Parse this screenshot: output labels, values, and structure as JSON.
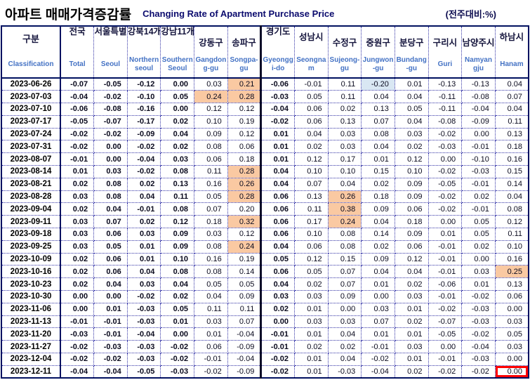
{
  "title": {
    "korean": "아파트 매매가격증감률",
    "english": "Changing Rate of Apartment Purchase Price",
    "unit_note": "(전주대비:%)"
  },
  "colors": {
    "highlight_orange": "#FAC9A2",
    "highlight_blue": "#D9E7F3",
    "red_box": "#FF0000",
    "border_navy": "#001060",
    "header_korean_text": "#14143C",
    "header_english_text": "#4472C4"
  },
  "table": {
    "corner": {
      "korean": "구분",
      "english": "Classification"
    },
    "columns": [
      {
        "id": "total",
        "korean": "전국",
        "english": "Total",
        "tier": 1,
        "bold": true,
        "thick_left": false
      },
      {
        "id": "seoul",
        "korean": "서울특별",
        "english": "Seoul",
        "tier": 1,
        "bold": true,
        "thick_left": false
      },
      {
        "id": "northern_seoul",
        "korean": "강북14개",
        "english": "Northern seoul",
        "tier": 1,
        "bold": true,
        "thick_left": false
      },
      {
        "id": "southern_seoul",
        "korean": "강남11개",
        "english": "Southern Seoul",
        "tier": 1,
        "bold": true,
        "thick_left": false
      },
      {
        "id": "gangdong",
        "korean": "강동구",
        "english": "Gangdong-gu",
        "tier": 3,
        "bold": false,
        "thick_left": false
      },
      {
        "id": "songpa",
        "korean": "송파구",
        "english": "Songpa-gu",
        "tier": 3,
        "bold": false,
        "thick_left": false
      },
      {
        "id": "gyeonggi",
        "korean": "경기도",
        "english": "Gyeonggi-do",
        "tier": 1,
        "bold": true,
        "thick_left": true
      },
      {
        "id": "seongnam",
        "korean": "성남시",
        "english": "Seongnam",
        "tier": 2,
        "bold": false,
        "thick_left": false
      },
      {
        "id": "sujeong",
        "korean": "수정구",
        "english": "Sujeong-gu",
        "tier": 3,
        "bold": false,
        "thick_left": false
      },
      {
        "id": "jungwon",
        "korean": "중원구",
        "english": "Jungwon-gu",
        "tier": 3,
        "bold": false,
        "thick_left": false
      },
      {
        "id": "bundang",
        "korean": "분당구",
        "english": "Bundang-gu",
        "tier": 3,
        "bold": false,
        "thick_left": false
      },
      {
        "id": "guri",
        "korean": "구리시",
        "english": "Guri",
        "tier": 3,
        "bold": false,
        "thick_left": false
      },
      {
        "id": "namyangju",
        "korean": "남양주시",
        "english": "Namyangju",
        "tier": 3,
        "bold": false,
        "thick_left": false
      },
      {
        "id": "hanam",
        "korean": "하남시",
        "english": "Hanam",
        "tier": 2,
        "bold": false,
        "thick_left": false
      }
    ],
    "rows": [
      {
        "date": "2023-06-26",
        "values": [
          "-0.07",
          "-0.05",
          "-0.12",
          "0.00",
          "0.03",
          "0.21",
          "-0.06",
          "-0.01",
          "0.11",
          "-0.20",
          "0.01",
          "-0.13",
          "-0.13",
          "0.04"
        ]
      },
      {
        "date": "2023-07-03",
        "values": [
          "-0.04",
          "-0.02",
          "-0.10",
          "0.05",
          "0.24",
          "0.28",
          "-0.03",
          "0.05",
          "0.11",
          "0.04",
          "0.04",
          "-0.11",
          "-0.08",
          "0.07"
        ]
      },
      {
        "date": "2023-07-10",
        "values": [
          "-0.06",
          "-0.08",
          "-0.16",
          "0.00",
          "0.12",
          "0.12",
          "-0.04",
          "0.06",
          "0.02",
          "0.13",
          "0.05",
          "-0.11",
          "-0.04",
          "0.04"
        ]
      },
      {
        "date": "2023-07-17",
        "values": [
          "-0.05",
          "-0.07",
          "-0.17",
          "0.02",
          "0.10",
          "0.19",
          "-0.02",
          "0.06",
          "0.13",
          "0.07",
          "0.04",
          "-0.08",
          "-0.09",
          "0.11"
        ]
      },
      {
        "date": "2023-07-24",
        "values": [
          "-0.02",
          "-0.02",
          "-0.09",
          "0.04",
          "0.09",
          "0.12",
          "0.01",
          "0.04",
          "0.03",
          "0.08",
          "0.03",
          "-0.02",
          "0.00",
          "0.13"
        ]
      },
      {
        "date": "2023-07-31",
        "values": [
          "-0.02",
          "0.00",
          "-0.02",
          "0.02",
          "0.08",
          "0.06",
          "0.01",
          "0.02",
          "0.03",
          "0.04",
          "0.02",
          "-0.03",
          "-0.01",
          "0.18"
        ]
      },
      {
        "date": "2023-08-07",
        "values": [
          "-0.01",
          "0.00",
          "-0.04",
          "0.03",
          "0.06",
          "0.18",
          "0.01",
          "0.12",
          "0.17",
          "0.01",
          "0.12",
          "0.00",
          "-0.10",
          "0.16"
        ]
      },
      {
        "date": "2023-08-14",
        "values": [
          "0.01",
          "0.03",
          "-0.02",
          "0.08",
          "0.11",
          "0.28",
          "0.04",
          "0.10",
          "0.10",
          "0.15",
          "0.10",
          "-0.02",
          "-0.03",
          "0.15"
        ]
      },
      {
        "date": "2023-08-21",
        "values": [
          "0.02",
          "0.08",
          "0.02",
          "0.13",
          "0.16",
          "0.26",
          "0.04",
          "0.07",
          "0.04",
          "0.02",
          "0.09",
          "-0.05",
          "-0.01",
          "0.14"
        ]
      },
      {
        "date": "2023-08-28",
        "values": [
          "0.03",
          "0.08",
          "0.04",
          "0.11",
          "0.05",
          "0.28",
          "0.06",
          "0.13",
          "0.26",
          "0.18",
          "0.09",
          "-0.02",
          "0.02",
          "0.04"
        ]
      },
      {
        "date": "2023-09-04",
        "values": [
          "0.02",
          "0.04",
          "-0.01",
          "0.08",
          "0.07",
          "0.20",
          "0.06",
          "0.11",
          "0.38",
          "0.09",
          "0.06",
          "-0.02",
          "-0.01",
          "0.08"
        ]
      },
      {
        "date": "2023-09-11",
        "values": [
          "0.03",
          "0.07",
          "0.02",
          "0.12",
          "0.18",
          "0.32",
          "0.06",
          "0.17",
          "0.24",
          "0.04",
          "0.18",
          "0.00",
          "0.05",
          "0.12"
        ]
      },
      {
        "date": "2023-09-18",
        "values": [
          "0.03",
          "0.06",
          "0.03",
          "0.09",
          "0.03",
          "0.12",
          "0.06",
          "0.10",
          "0.08",
          "0.14",
          "0.09",
          "0.01",
          "0.05",
          "0.11"
        ]
      },
      {
        "date": "2023-09-25",
        "values": [
          "0.03",
          "0.05",
          "0.01",
          "0.09",
          "0.08",
          "0.24",
          "0.04",
          "0.06",
          "0.08",
          "0.02",
          "0.06",
          "-0.01",
          "0.02",
          "0.10"
        ]
      },
      {
        "date": "2023-10-09",
        "values": [
          "0.02",
          "0.06",
          "0.01",
          "0.10",
          "0.16",
          "0.19",
          "0.05",
          "0.12",
          "0.15",
          "0.09",
          "0.12",
          "-0.01",
          "0.00",
          "0.16"
        ]
      },
      {
        "date": "2023-10-16",
        "values": [
          "0.02",
          "0.06",
          "0.04",
          "0.08",
          "0.08",
          "0.14",
          "0.06",
          "0.05",
          "0.07",
          "0.04",
          "0.04",
          "-0.01",
          "0.03",
          "0.25"
        ]
      },
      {
        "date": "2023-10-23",
        "values": [
          "0.02",
          "0.04",
          "0.03",
          "0.04",
          "0.05",
          "0.05",
          "0.04",
          "0.02",
          "0.07",
          "0.01",
          "0.02",
          "-0.06",
          "0.01",
          "0.13"
        ]
      },
      {
        "date": "2023-10-30",
        "values": [
          "0.00",
          "0.00",
          "-0.02",
          "0.02",
          "0.04",
          "0.09",
          "0.03",
          "0.03",
          "0.09",
          "0.00",
          "0.03",
          "-0.01",
          "-0.02",
          "0.06"
        ]
      },
      {
        "date": "2023-11-06",
        "values": [
          "0.00",
          "0.01",
          "-0.03",
          "0.05",
          "0.11",
          "0.11",
          "0.02",
          "0.01",
          "0.00",
          "0.03",
          "0.01",
          "-0.02",
          "-0.03",
          "0.00"
        ]
      },
      {
        "date": "2023-11-13",
        "values": [
          "-0.01",
          "-0.01",
          "-0.03",
          "0.01",
          "0.03",
          "0.07",
          "0.00",
          "0.03",
          "0.03",
          "0.07",
          "0.02",
          "-0.07",
          "-0.03",
          "0.03"
        ]
      },
      {
        "date": "2023-11-20",
        "values": [
          "-0.03",
          "-0.01",
          "-0.04",
          "0.00",
          "0.01",
          "-0.04",
          "-0.01",
          "0.01",
          "0.04",
          "0.01",
          "0.01",
          "-0.05",
          "-0.02",
          "0.05"
        ]
      },
      {
        "date": "2023-11-27",
        "values": [
          "-0.02",
          "-0.03",
          "-0.03",
          "-0.02",
          "0.06",
          "-0.09",
          "-0.01",
          "0.02",
          "0.02",
          "-0.01",
          "0.03",
          "0.00",
          "-0.04",
          "0.03"
        ]
      },
      {
        "date": "2023-12-04",
        "values": [
          "-0.02",
          "-0.02",
          "-0.03",
          "-0.02",
          "-0.01",
          "-0.04",
          "-0.02",
          "0.01",
          "0.04",
          "-0.02",
          "0.01",
          "-0.01",
          "-0.03",
          "0.00"
        ]
      },
      {
        "date": "2023-12-11",
        "values": [
          "-0.04",
          "-0.04",
          "-0.05",
          "-0.03",
          "-0.02",
          "-0.09",
          "-0.02",
          "0.01",
          "-0.03",
          "-0.04",
          "0.02",
          "-0.02",
          "-0.02",
          "0.00"
        ]
      }
    ],
    "highlights": [
      {
        "date": "2023-06-26",
        "col": "songpa",
        "type": "orange"
      },
      {
        "date": "2023-06-26",
        "col": "jungwon",
        "type": "blue"
      },
      {
        "date": "2023-07-03",
        "col": "gangdong",
        "type": "orange"
      },
      {
        "date": "2023-07-03",
        "col": "songpa",
        "type": "orange"
      },
      {
        "date": "2023-08-14",
        "col": "songpa",
        "type": "orange"
      },
      {
        "date": "2023-08-21",
        "col": "songpa",
        "type": "orange"
      },
      {
        "date": "2023-08-28",
        "col": "songpa",
        "type": "orange"
      },
      {
        "date": "2023-08-28",
        "col": "sujeong",
        "type": "orange"
      },
      {
        "date": "2023-09-04",
        "col": "sujeong",
        "type": "orange"
      },
      {
        "date": "2023-09-11",
        "col": "songpa",
        "type": "orange"
      },
      {
        "date": "2023-09-11",
        "col": "sujeong",
        "type": "orange"
      },
      {
        "date": "2023-09-25",
        "col": "songpa",
        "type": "orange"
      },
      {
        "date": "2023-10-16",
        "col": "hanam",
        "type": "orange"
      },
      {
        "date": "2023-12-11",
        "col": "hanam",
        "type": "redbox"
      }
    ]
  }
}
